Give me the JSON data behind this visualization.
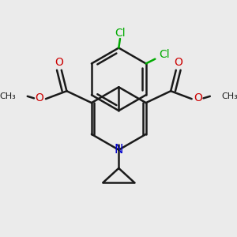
{
  "bg_color": "#ebebeb",
  "bond_color": "#1a1a1a",
  "cl_color": "#00aa00",
  "o_color": "#cc0000",
  "n_color": "#0000cc",
  "lw": 1.8,
  "figsize": [
    3.0,
    3.0
  ],
  "dpi": 100,
  "xlim": [
    0,
    300
  ],
  "ylim": [
    0,
    300
  ]
}
